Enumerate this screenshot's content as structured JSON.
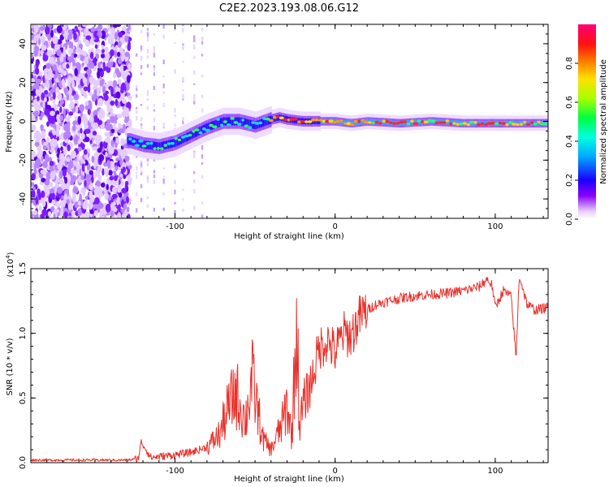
{
  "title": "C2E2.2023.193.08.06.G12",
  "chart_data": [
    {
      "type": "heatmap",
      "xlabel": "Height of straight line (km)",
      "ylabel": "Frequency (Hz)",
      "xlim": [
        -190,
        133
      ],
      "ylim": [
        -50,
        50
      ],
      "xticks": [
        -100,
        0,
        100
      ],
      "yticks": [
        -40,
        -20,
        0,
        20,
        40
      ],
      "colorbar": {
        "label": "Normalized spectral amplitude",
        "range": [
          0,
          1
        ],
        "ticks": [
          "0.0",
          "0.2",
          "0.4",
          "0.6",
          "0.8"
        ]
      },
      "ridge": {
        "x": [
          -128,
          -120,
          -110,
          -100,
          -90,
          -80,
          -70,
          -60,
          -50,
          -40,
          -35,
          -30,
          -20,
          -10,
          0,
          10,
          20,
          40,
          60,
          80,
          100,
          115,
          133
        ],
        "y": [
          -10,
          -12,
          -13,
          -11,
          -7,
          -3,
          0,
          0,
          -2,
          1,
          2,
          1,
          0,
          0,
          0,
          -1,
          0,
          -1,
          0,
          -1,
          -1,
          -1,
          -1
        ]
      },
      "noise_region": [
        -190,
        -128
      ]
    },
    {
      "type": "line",
      "xlabel": "Height of straight line (km)",
      "ylabel": "SNR (10 * v/v)",
      "scale_label": "(x10^4)",
      "xlim": [
        -190,
        133
      ],
      "ylim": [
        0,
        1.5
      ],
      "xticks": [
        -100,
        0,
        100
      ],
      "yticks": [
        "0.0",
        "0.5",
        "1.0",
        "1.5"
      ],
      "color": "#e8302a",
      "series": [
        {
          "x": [
            -190,
            -170,
            -150,
            -130,
            -123,
            -121,
            -115,
            -100,
            -90,
            -80,
            -72,
            -68,
            -62,
            -56,
            -52,
            -45,
            -40,
            -33,
            -30,
            -27,
            -24,
            -22,
            -20,
            -15,
            -10,
            -5,
            0,
            5,
            10,
            15,
            20,
            25,
            30,
            40,
            50,
            60,
            70,
            80,
            90,
            95,
            98,
            100,
            105,
            110,
            113,
            115,
            120,
            125,
            133
          ],
          "y": [
            0.02,
            0.02,
            0.02,
            0.02,
            0.03,
            0.16,
            0.04,
            0.06,
            0.08,
            0.12,
            0.22,
            0.38,
            0.55,
            0.32,
            0.65,
            0.18,
            0.1,
            0.3,
            0.45,
            0.2,
            1.1,
            0.25,
            0.45,
            0.62,
            0.88,
            0.95,
            0.85,
            1.0,
            0.98,
            1.12,
            1.18,
            1.22,
            1.24,
            1.27,
            1.29,
            1.3,
            1.31,
            1.33,
            1.36,
            1.42,
            1.37,
            1.2,
            1.33,
            1.28,
            0.8,
            1.45,
            1.22,
            1.18,
            1.2
          ]
        }
      ]
    }
  ]
}
